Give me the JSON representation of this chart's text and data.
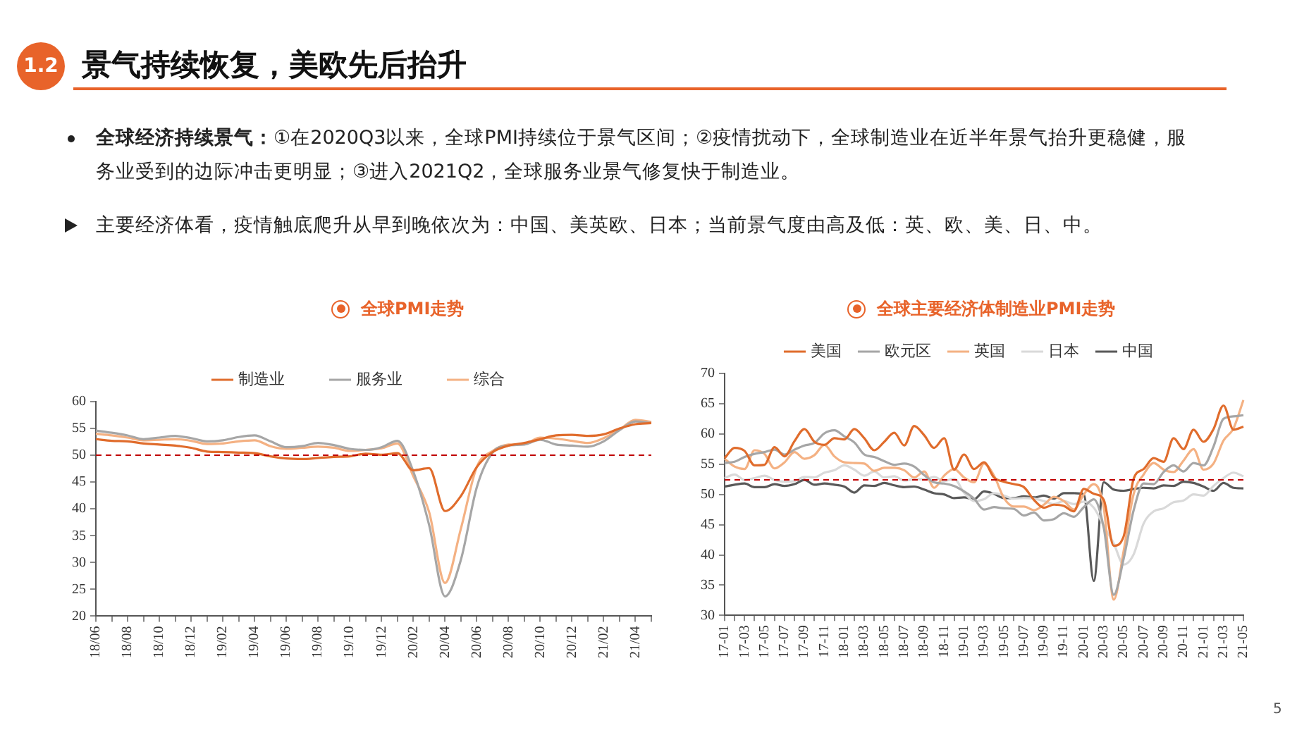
{
  "chart_data": [
    {
      "type": "other",
      "title": "景气持续恢复，美欧先后抬升",
      "annotations": [
        "1.2",
        "全球经济持续景气：",
        "①在2020Q3以来，全球PMI持续位于景气区间；②疫情扰动下，全球制造业在近半年景气抬升更稳健，服务业受到的边际冲击更明显；③进入2021Q2，全球服务业景气修复快于制造业。",
        "主要经济体看，疫情触底爬升从早到晚依次为：中国、美英欧、日本；当前景气度由高及低：英、欧、美、日、中。",
        "5"
      ]
    },
    {
      "type": "line",
      "title": "全球PMI走势",
      "legend": "top",
      "grid": false,
      "ylim": [
        20,
        60
      ],
      "yticks": [
        20,
        25,
        30,
        35,
        40,
        45,
        50,
        55,
        60
      ],
      "categories": [
        "18/06",
        null,
        "18/08",
        null,
        "18/10",
        null,
        "18/12",
        null,
        "19/02",
        null,
        "19/04",
        null,
        "19/06",
        null,
        "19/08",
        null,
        "19/10",
        null,
        "19/12",
        null,
        "20/02",
        null,
        "20/04",
        null,
        "20/06",
        null,
        "20/08",
        null,
        "20/10",
        null,
        "20/12",
        null,
        "21/02",
        null,
        "21/04",
        null
      ],
      "ref_lines": [
        {
          "axis": "y",
          "value": 50,
          "color": "#c00000",
          "line_style": "dashed"
        }
      ],
      "series": [
        {
          "name": "制造业",
          "color": "#e06c2c",
          "values": [
            53.0,
            52.7,
            52.6,
            52.2,
            52.0,
            51.8,
            51.4,
            50.7,
            50.6,
            50.5,
            50.4,
            49.8,
            49.4,
            49.3,
            49.5,
            49.7,
            49.8,
            50.3,
            50.1,
            50.4,
            47.2,
            47.6,
            39.6,
            42.4,
            47.8,
            50.6,
            51.8,
            52.3,
            53.0,
            53.7,
            53.8,
            53.6,
            53.9,
            55.0,
            55.8,
            56.0
          ]
        },
        {
          "name": "服务业",
          "color": "#a6a6a6",
          "values": [
            54.6,
            54.2,
            53.7,
            53.0,
            53.3,
            53.6,
            53.2,
            52.6,
            52.8,
            53.4,
            53.7,
            52.6,
            51.5,
            51.7,
            52.3,
            51.9,
            51.2,
            51.0,
            51.5,
            52.7,
            47.0,
            37.0,
            23.7,
            30.5,
            44.0,
            50.5,
            51.8,
            52.0,
            52.9,
            52.0,
            51.8,
            51.6,
            52.6,
            54.7,
            56.3,
            56.0
          ]
        },
        {
          "name": "综合",
          "color": "#f4b183",
          "values": [
            54.0,
            53.7,
            53.3,
            52.8,
            52.9,
            53.0,
            52.7,
            52.1,
            52.2,
            52.6,
            52.8,
            51.7,
            51.2,
            51.4,
            51.6,
            51.4,
            50.8,
            51.0,
            51.3,
            52.2,
            46.1,
            39.4,
            26.2,
            36.3,
            47.8,
            50.8,
            52.0,
            52.1,
            53.3,
            53.1,
            52.7,
            52.3,
            53.2,
            54.8,
            56.6,
            56.2
          ]
        }
      ]
    },
    {
      "type": "line",
      "title": "全球主要经济体制造业PMI走势",
      "legend": "top",
      "grid": false,
      "ylim": [
        30,
        70
      ],
      "yticks": [
        30,
        35,
        40,
        45,
        50,
        55,
        60,
        65,
        70
      ],
      "categories": [
        "17-01",
        null,
        "17-03",
        null,
        "17-05",
        null,
        "17-07",
        null,
        "17-09",
        null,
        "17-11",
        null,
        "18-01",
        null,
        "18-03",
        null,
        "18-05",
        null,
        "18-07",
        null,
        "18-09",
        null,
        "18-11",
        null,
        "19-01",
        null,
        "19-03",
        null,
        "19-05",
        null,
        "19-07",
        null,
        "19-09",
        null,
        "19-11",
        null,
        "20-01",
        null,
        "20-03",
        null,
        "20-05",
        null,
        "20-07",
        null,
        "20-09",
        null,
        "20-11",
        null,
        "21-01",
        null,
        "21-03",
        null,
        "21-05"
      ],
      "ref_lines": [
        {
          "axis": "y",
          "value": 52.4,
          "color": "#c00000",
          "line_style": "dashed"
        }
      ],
      "series": [
        {
          "name": "美国",
          "color": "#e06c2c",
          "values": [
            56.0,
            57.7,
            57.2,
            54.8,
            54.9,
            57.8,
            56.3,
            58.8,
            60.8,
            58.7,
            58.2,
            59.3,
            59.1,
            60.8,
            59.3,
            57.3,
            58.7,
            60.2,
            58.1,
            61.3,
            59.8,
            57.7,
            59.3,
            54.1,
            56.6,
            54.2,
            55.3,
            52.8,
            52.1,
            51.7,
            51.2,
            49.1,
            47.8,
            48.3,
            48.1,
            47.2,
            50.9,
            50.1,
            49.1,
            41.5,
            43.1,
            52.6,
            54.2,
            56.0,
            55.4,
            59.3,
            57.5,
            60.7,
            58.7,
            60.8,
            64.7,
            60.7,
            61.2
          ]
        },
        {
          "name": "欧元区",
          "color": "#a6a6a6",
          "values": [
            55.2,
            55.4,
            56.2,
            56.7,
            57.0,
            57.4,
            56.6,
            57.4,
            58.1,
            58.5,
            60.1,
            60.6,
            59.6,
            58.6,
            56.6,
            56.2,
            55.5,
            54.9,
            55.1,
            54.6,
            53.2,
            52.0,
            51.8,
            51.4,
            50.5,
            49.3,
            47.5,
            47.9,
            47.7,
            47.6,
            46.5,
            47.0,
            45.7,
            45.9,
            46.9,
            46.3,
            47.9,
            49.2,
            44.5,
            33.4,
            39.4,
            47.4,
            51.8,
            51.7,
            53.7,
            54.8,
            53.8,
            55.2,
            54.8,
            57.9,
            62.5,
            62.9,
            63.1
          ]
        },
        {
          "name": "英国",
          "color": "#f4b183",
          "values": [
            55.9,
            54.6,
            54.2,
            57.3,
            56.7,
            54.3,
            55.3,
            57.0,
            55.9,
            56.5,
            58.2,
            56.3,
            55.3,
            55.2,
            55.1,
            53.9,
            54.4,
            54.4,
            54.0,
            52.8,
            53.8,
            51.1,
            53.1,
            54.2,
            52.8,
            52.0,
            55.1,
            53.1,
            49.4,
            48.0,
            48.0,
            47.4,
            48.3,
            49.6,
            48.9,
            47.5,
            50.0,
            51.7,
            47.8,
            32.6,
            40.7,
            50.1,
            53.3,
            55.2,
            54.1,
            53.7,
            55.6,
            57.5,
            54.1,
            55.1,
            58.9,
            60.9,
            65.6
          ]
        },
        {
          "name": "日本",
          "color": "#d9d9d9",
          "values": [
            52.7,
            53.3,
            52.4,
            52.7,
            53.1,
            52.4,
            52.1,
            52.2,
            52.9,
            52.8,
            53.6,
            54.0,
            54.8,
            54.1,
            53.1,
            53.8,
            52.8,
            53.0,
            52.3,
            52.5,
            52.5,
            52.9,
            52.2,
            52.6,
            50.3,
            48.9,
            49.2,
            50.2,
            49.8,
            49.3,
            49.4,
            49.3,
            48.9,
            48.4,
            48.9,
            48.4,
            48.8,
            47.8,
            44.8,
            41.9,
            38.4,
            40.1,
            45.2,
            47.2,
            47.7,
            48.7,
            49.0,
            50.0,
            49.8,
            51.4,
            52.7,
            53.6,
            53.0
          ]
        },
        {
          "name": "中国",
          "color": "#595959",
          "values": [
            51.3,
            51.6,
            51.8,
            51.2,
            51.2,
            51.7,
            51.4,
            51.7,
            52.4,
            51.6,
            51.8,
            51.6,
            51.3,
            50.3,
            51.5,
            51.4,
            51.9,
            51.5,
            51.2,
            51.3,
            50.8,
            50.2,
            50.0,
            49.4,
            49.5,
            49.2,
            50.5,
            50.1,
            49.4,
            49.4,
            49.7,
            49.5,
            49.8,
            49.3,
            50.2,
            50.2,
            50.0,
            35.7,
            52.0,
            50.8,
            50.6,
            50.9,
            51.1,
            51.0,
            51.5,
            51.4,
            52.1,
            51.9,
            51.3,
            50.6,
            51.9,
            51.1,
            51.0
          ]
        }
      ]
    }
  ]
}
